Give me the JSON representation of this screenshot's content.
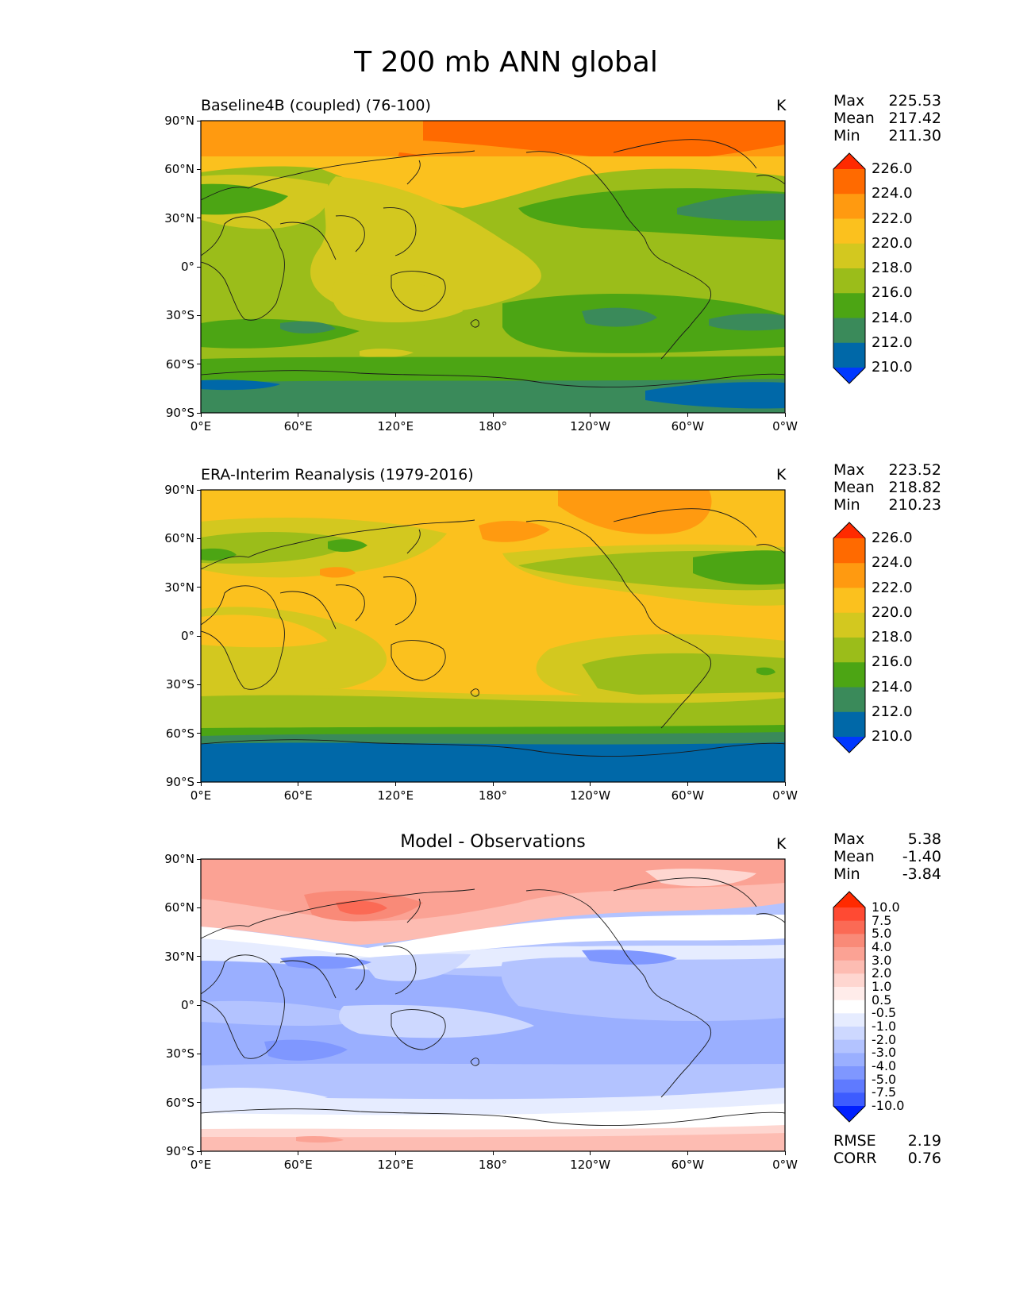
{
  "figure": {
    "title": "T 200 mb ANN global"
  },
  "chart_data": [
    {
      "type": "heatmap",
      "title": "Baseline4B (coupled) (76-100)",
      "units": "K",
      "x_tick_labels": [
        "0°E",
        "60°E",
        "120°E",
        "180°",
        "120°W",
        "60°W",
        "0°W"
      ],
      "y_tick_labels": [
        "90°N",
        "60°N",
        "30°N",
        "0°",
        "30°S",
        "60°S",
        "90°S"
      ],
      "stats": [
        {
          "label": "Max",
          "value": "225.53"
        },
        {
          "label": "Mean",
          "value": "217.42"
        },
        {
          "label": "Min",
          "value": "211.30"
        }
      ],
      "colorbar": {
        "levels": [
          "226.0",
          "224.0",
          "222.0",
          "220.0",
          "218.0",
          "216.0",
          "214.0",
          "212.0",
          "210.0"
        ],
        "colors": [
          "#ff2a00",
          "#ff6a00",
          "#ff9a10",
          "#fbc11e",
          "#d3c81f",
          "#9bbd1a",
          "#4ca514",
          "#3a8a5a",
          "#0068a8",
          "#0038ff"
        ]
      }
    },
    {
      "type": "heatmap",
      "title": "ERA-Interim Reanalysis (1979-2016)",
      "units": "K",
      "x_tick_labels": [
        "0°E",
        "60°E",
        "120°E",
        "180°",
        "120°W",
        "60°W",
        "0°W"
      ],
      "y_tick_labels": [
        "90°N",
        "60°N",
        "30°N",
        "0°",
        "30°S",
        "60°S",
        "90°S"
      ],
      "stats": [
        {
          "label": "Max",
          "value": "223.52"
        },
        {
          "label": "Mean",
          "value": "218.82"
        },
        {
          "label": "Min",
          "value": "210.23"
        }
      ],
      "colorbar": {
        "levels": [
          "226.0",
          "224.0",
          "222.0",
          "220.0",
          "218.0",
          "216.0",
          "214.0",
          "212.0",
          "210.0"
        ],
        "colors": [
          "#ff2a00",
          "#ff6a00",
          "#ff9a10",
          "#fbc11e",
          "#d3c81f",
          "#9bbd1a",
          "#4ca514",
          "#3a8a5a",
          "#0068a8",
          "#0038ff"
        ]
      }
    },
    {
      "type": "heatmap",
      "title": "Model - Observations",
      "units": "K",
      "x_tick_labels": [
        "0°E",
        "60°E",
        "120°E",
        "180°",
        "120°W",
        "60°W",
        "0°W"
      ],
      "y_tick_labels": [
        "90°N",
        "60°N",
        "30°N",
        "0°",
        "30°S",
        "60°S",
        "90°S"
      ],
      "stats": [
        {
          "label": "Max",
          "value": "5.38"
        },
        {
          "label": "Mean",
          "value": "-1.40"
        },
        {
          "label": "Min",
          "value": "-3.84"
        }
      ],
      "extra_stats": [
        {
          "label": "RMSE",
          "value": "2.19"
        },
        {
          "label": "CORR",
          "value": "0.76"
        }
      ],
      "colorbar": {
        "levels": [
          "10.0",
          "7.5",
          "5.0",
          "4.0",
          "3.0",
          "2.0",
          "1.0",
          "0.5",
          "-0.5",
          "-1.0",
          "-2.0",
          "-3.0",
          "-4.0",
          "-5.0",
          "-7.5",
          "-10.0"
        ],
        "colors": [
          "#ff2a00",
          "#ff4a33",
          "#fb6a55",
          "#f98a78",
          "#fba294",
          "#fdbcb2",
          "#fed6d0",
          "#ffecea",
          "#ffffff",
          "#e6ecff",
          "#cdd8ff",
          "#b3c3ff",
          "#9aafff",
          "#7f97ff",
          "#5f7aff",
          "#3d5cff",
          "#0020ff"
        ]
      }
    }
  ]
}
